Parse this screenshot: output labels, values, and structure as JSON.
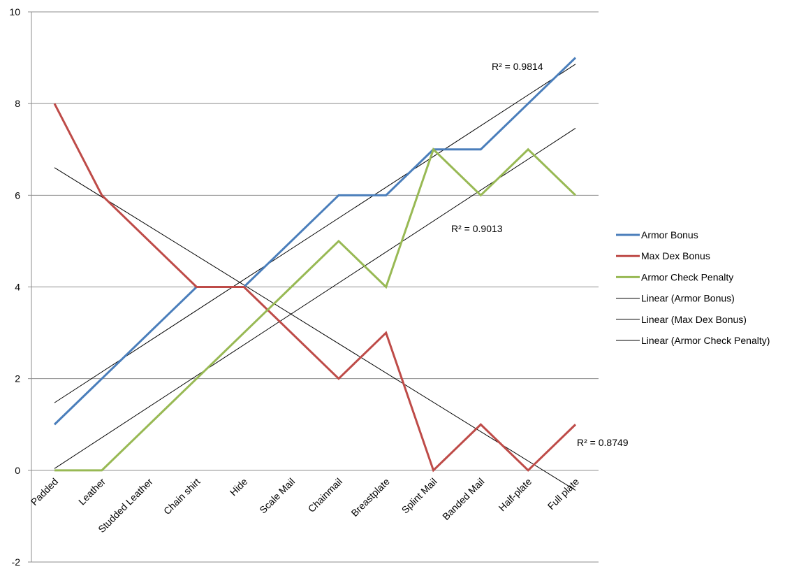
{
  "chart_data": {
    "type": "line",
    "categories": [
      "Padded",
      "Leather",
      "Studded Leather",
      "Chain shirt",
      "Hide",
      "Scale Mail",
      "Chainmail",
      "Breastplate",
      "Splint Mail",
      "Banded Mail",
      "Half-plate",
      "Full plate"
    ],
    "series": [
      {
        "name": "Armor Bonus",
        "color": "#4a7ebb",
        "values": [
          1,
          2,
          3,
          4,
          4,
          5,
          6,
          6,
          7,
          7,
          8,
          9
        ]
      },
      {
        "name": "Max Dex Bonus",
        "color": "#be4b48",
        "values": [
          8,
          6,
          5,
          4,
          4,
          3,
          2,
          3,
          0,
          1,
          0,
          1
        ]
      },
      {
        "name": "Armor Check Penalty",
        "color": "#98b954",
        "values": [
          0,
          0,
          1,
          2,
          3,
          4,
          5,
          4,
          7,
          6,
          7,
          6
        ]
      }
    ],
    "trendlines": [
      {
        "name": "Linear (Armor Bonus)",
        "color": "#000000",
        "type": "linear",
        "r2_label": "R² = 0.9814"
      },
      {
        "name": "Linear (Max Dex Bonus)",
        "color": "#000000",
        "type": "linear",
        "r2_label": "R² = 0.8749"
      },
      {
        "name": "Linear (Armor Check Penalty)",
        "color": "#000000",
        "type": "linear",
        "r2_label": "R² = 0.9013"
      }
    ],
    "y_ticks": [
      "-2",
      "0",
      "2",
      "4",
      "6",
      "8",
      "10"
    ],
    "ylim": [
      -2,
      10
    ],
    "grid": true,
    "legend_position": "right",
    "title": "",
    "xlabel": "",
    "ylabel": ""
  }
}
